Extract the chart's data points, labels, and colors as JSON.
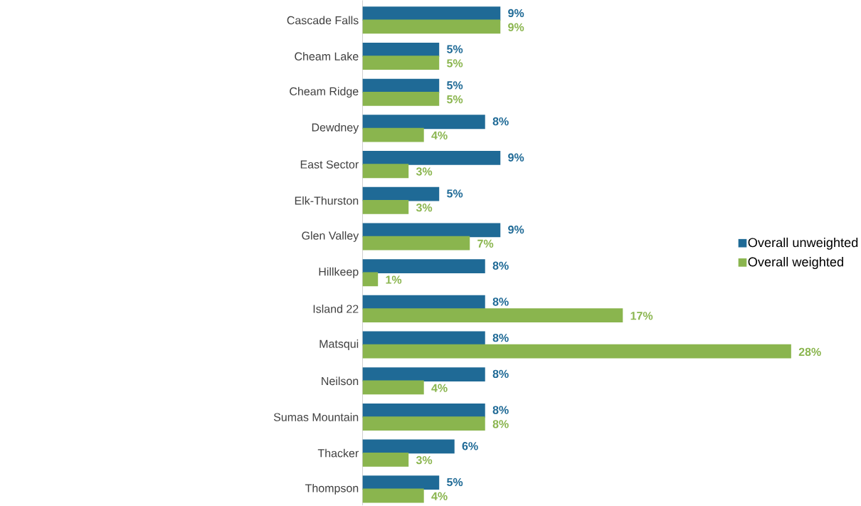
{
  "chart_data": {
    "type": "bar",
    "orientation": "horizontal",
    "legend": "right",
    "categories": [
      "Cascade Falls",
      "Cheam Lake",
      "Cheam Ridge",
      "Dewdney",
      "East Sector",
      "Elk-Thurston",
      "Glen Valley",
      "Hillkeep",
      "Island 22",
      "Matsqui",
      "Neilson",
      "Sumas Mountain",
      "Thacker",
      "Thompson"
    ],
    "series": [
      {
        "name": "Overall unweighted",
        "color": "#1f6a96",
        "values": [
          9,
          5,
          5,
          8,
          9,
          5,
          9,
          8,
          8,
          8,
          8,
          8,
          6,
          5
        ],
        "value_labels": [
          "9%",
          "5%",
          "5%",
          "8%",
          "9%",
          "5%",
          "9%",
          "8%",
          "8%",
          "8%",
          "8%",
          "8%",
          "6%",
          "5%"
        ]
      },
      {
        "name": "Overall weighted",
        "color": "#8ab54e",
        "values": [
          9,
          5,
          5,
          4,
          3,
          3,
          7,
          1,
          17,
          28,
          4,
          8,
          3,
          4
        ],
        "value_labels": [
          "9%",
          "5%",
          "5%",
          "4%",
          "3%",
          "3%",
          "7%",
          "1%",
          "17%",
          "28%",
          "4%",
          "8%",
          "3%",
          "4%"
        ]
      }
    ]
  }
}
